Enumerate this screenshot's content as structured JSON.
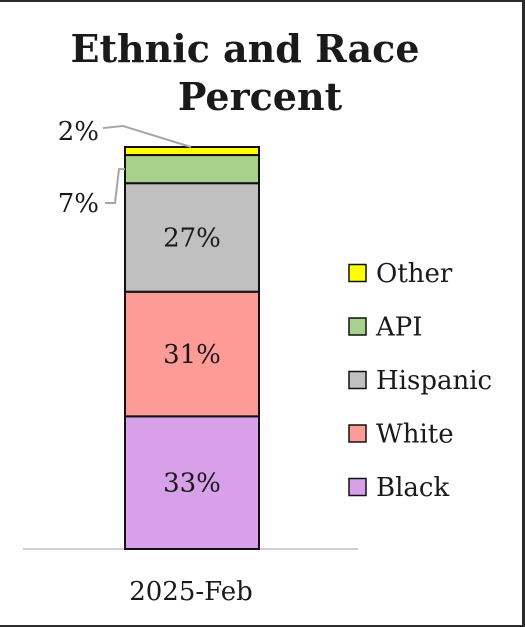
{
  "chart_data": {
    "type": "bar",
    "stacked": true,
    "title": "Ethnic and Race Percent",
    "title_lines": [
      "Ethnic and Race",
      "Percent"
    ],
    "categories": [
      "2025-Feb"
    ],
    "series": [
      {
        "name": "Black",
        "values": [
          33
        ],
        "label": "33%",
        "color": "#d8a0e8"
      },
      {
        "name": "White",
        "values": [
          31
        ],
        "label": "31%",
        "color": "#ff9b96"
      },
      {
        "name": "Hispanic",
        "values": [
          27
        ],
        "label": "27%",
        "color": "#c0c0c0"
      },
      {
        "name": "API",
        "values": [
          7
        ],
        "label": "7%",
        "color": "#a9d18e"
      },
      {
        "name": "Other",
        "values": [
          2
        ],
        "label": "2%",
        "color": "#ffff00"
      }
    ],
    "legend_order": [
      "Other",
      "API",
      "Hispanic",
      "White",
      "Black"
    ],
    "legend_position": "right",
    "ylim": [
      0,
      100
    ],
    "grid": false,
    "y_axis_visible": false
  }
}
